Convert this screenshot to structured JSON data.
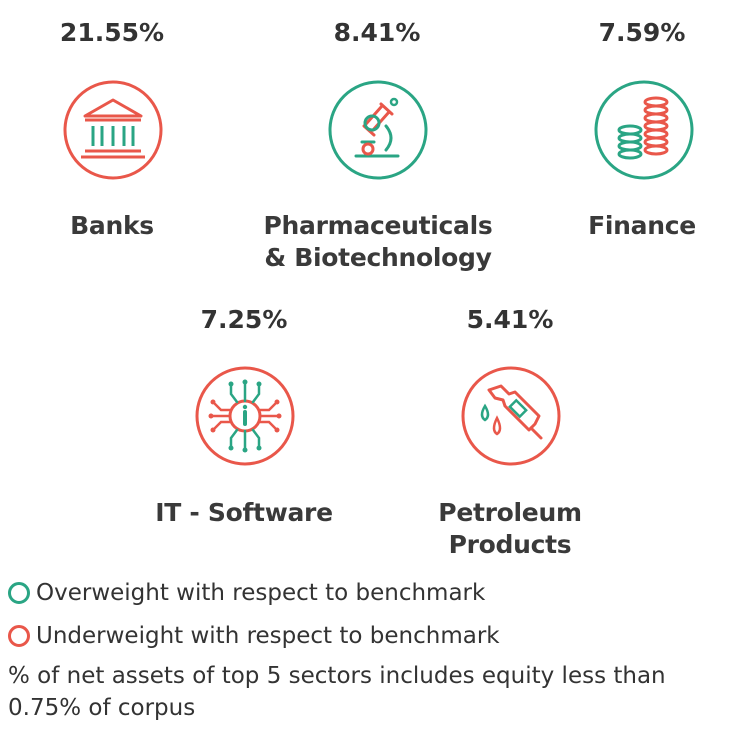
{
  "colors": {
    "overweight": "#2aa584",
    "underweight": "#e9574a"
  },
  "sectors": [
    {
      "percent": "21.55%",
      "name_line1": "Banks",
      "name_line2": "",
      "icon": "bank-icon",
      "status": "underweight"
    },
    {
      "percent": "8.41%",
      "name_line1": "Pharmaceuticals",
      "name_line2": "& Biotechnology",
      "icon": "microscope-icon",
      "status": "overweight"
    },
    {
      "percent": "7.59%",
      "name_line1": "Finance",
      "name_line2": "",
      "icon": "coins-icon",
      "status": "overweight"
    },
    {
      "percent": "7.25%",
      "name_line1": "IT - Software",
      "name_line2": "",
      "icon": "chip-icon",
      "status": "underweight"
    },
    {
      "percent": "5.41%",
      "name_line1": "Petroleum",
      "name_line2": "Products",
      "icon": "fuel-nozzle-icon",
      "status": "underweight"
    }
  ],
  "legend": {
    "overweight_label": "Overweight with respect to benchmark",
    "underweight_label": "Underweight with respect to benchmark"
  },
  "note": "% of net assets of top 5 sectors includes equity less than 0.75% of corpus"
}
